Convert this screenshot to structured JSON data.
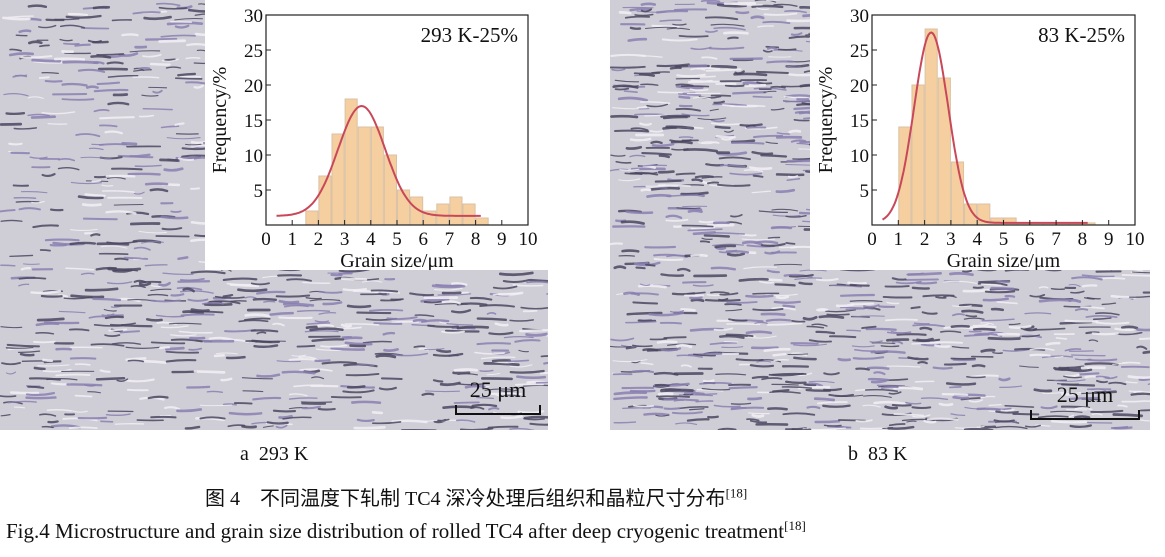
{
  "panels": [
    {
      "label": "a  293 K",
      "scale_bar": "25 μm",
      "chart_data": {
        "type": "bar",
        "annotation": "293 K-25%",
        "xlabel": "Grain size/μm",
        "ylabel": "Frequency/%",
        "xlim": [
          0,
          10
        ],
        "ylim": [
          0,
          30
        ],
        "xticks": [
          0,
          1,
          2,
          3,
          4,
          5,
          6,
          7,
          8,
          9,
          10
        ],
        "yticks": [
          5,
          10,
          15,
          20,
          25,
          30
        ],
        "bin_width": 0.5,
        "bin_starts": [
          1.5,
          2,
          2.5,
          3,
          3.5,
          4,
          4.5,
          5,
          5.5,
          6,
          6.5,
          7,
          7.5,
          8
        ],
        "values": [
          2,
          7,
          13,
          18,
          14,
          14,
          10,
          5,
          4,
          2,
          3,
          4,
          3,
          1
        ],
        "fit": {
          "type": "gaussian",
          "peak_x": 3.65,
          "peak_y": 17,
          "sigma": 0.9,
          "baseline": 1.3,
          "x_range": [
            0.4,
            8.2
          ]
        },
        "bar_color": "#f5cf9f",
        "fit_color": "#c8485a"
      }
    },
    {
      "label": "b  83 K",
      "scale_bar": "25 μm",
      "chart_data": {
        "type": "bar",
        "annotation": "83 K-25%",
        "xlabel": "Grain size/μm",
        "ylabel": "Frequency/%",
        "xlim": [
          0,
          10
        ],
        "ylim": [
          0,
          30
        ],
        "xticks": [
          0,
          1,
          2,
          3,
          4,
          5,
          6,
          7,
          8,
          9,
          10
        ],
        "yticks": [
          5,
          10,
          15,
          20,
          25,
          30
        ],
        "bin_width": 0.5,
        "bin_starts": [
          1,
          1.5,
          2,
          2.5,
          3,
          3.5,
          4,
          4.5,
          5,
          5.5,
          6,
          6.5,
          7,
          7.5,
          8
        ],
        "values": [
          14,
          20,
          28,
          21,
          9,
          3,
          3,
          1,
          1,
          0.3,
          0.3,
          0.3,
          0.3,
          0.3,
          0.3
        ],
        "fit": {
          "type": "gaussian",
          "peak_x": 2.25,
          "peak_y": 27.5,
          "sigma": 0.65,
          "baseline": 0.3,
          "x_range": [
            0.4,
            8.2
          ]
        },
        "bar_color": "#f5cf9f",
        "fit_color": "#c8485a"
      }
    }
  ],
  "caption": {
    "cn": "图 4    不同温度下轧制 TC4 深冷处理后组织和晶粒尺寸分布",
    "en": "Fig.4 Microstructure and grain size distribution of rolled TC4 after deep cryogenic treatment",
    "ref": "[18]"
  }
}
